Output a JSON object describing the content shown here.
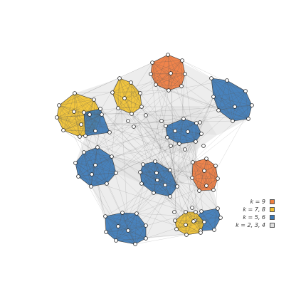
{
  "legend": [
    {
      "label": "k = 9",
      "color": "#f08040"
    },
    {
      "label": "k = 7, 8",
      "color": "#f0c030"
    },
    {
      "label": "k = 5, 6",
      "color": "#3a78b5"
    },
    {
      "label": "k = 2, 3, 4",
      "color": "#e0e0e0"
    }
  ],
  "colors": {
    "k9": "#ef7b3e",
    "k78": "#f2c230",
    "k56": "#3b7ab8",
    "k234": "#dedede",
    "edge": "#555555",
    "node_fill": "#ffffff",
    "node_stroke": "#222222"
  }
}
